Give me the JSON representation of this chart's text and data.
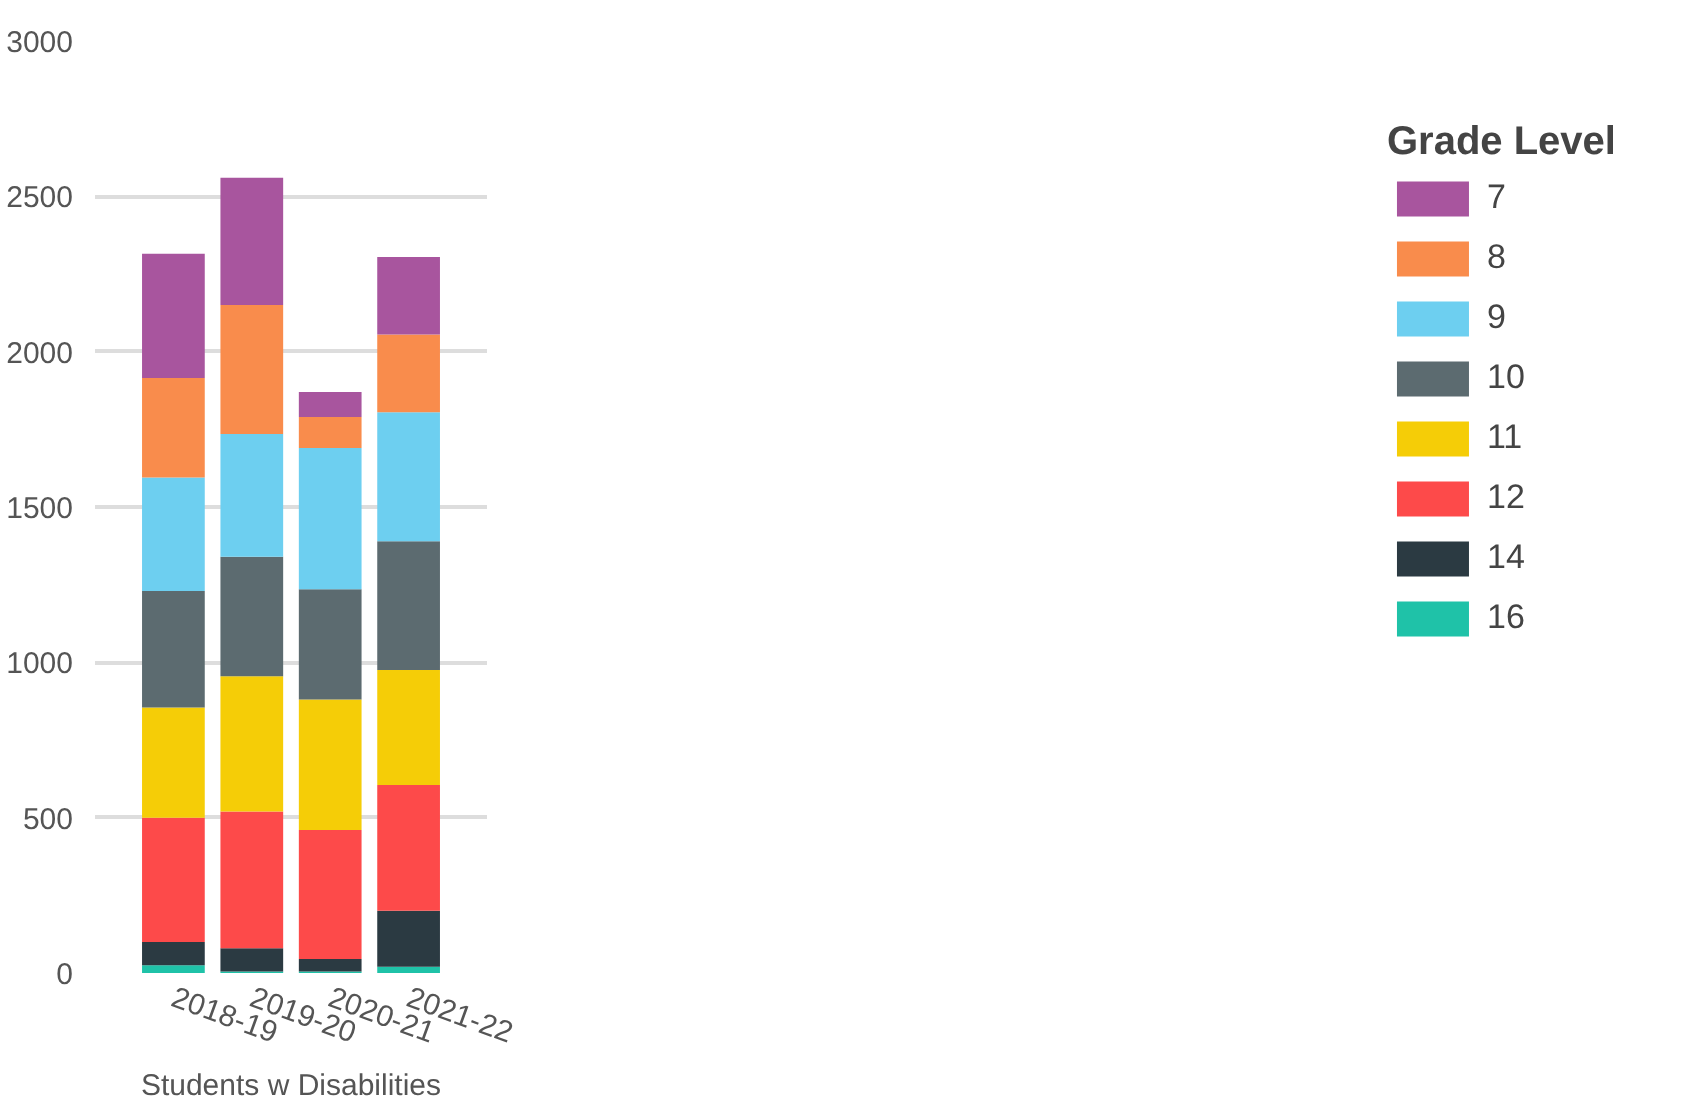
{
  "chart_data": {
    "type": "bar",
    "stacked": true,
    "categories": [
      "2018-19",
      "2019-20",
      "2020-21",
      "2021-22"
    ],
    "xlabel": "Students w Disabilities",
    "legend_title": "Grade Level",
    "legend": "right",
    "grid": "y",
    "ylim": [
      0,
      3000
    ],
    "yticks": [
      0,
      500,
      1000,
      1500,
      2000,
      2500,
      3000
    ],
    "series": [
      {
        "name": "16",
        "color": "#1fc2a8",
        "values": [
          25,
          5,
          5,
          20
        ]
      },
      {
        "name": "14",
        "color": "#2b3a42",
        "values": [
          75,
          75,
          40,
          180
        ]
      },
      {
        "name": "12",
        "color": "#fd4a4a",
        "values": [
          400,
          440,
          415,
          405
        ]
      },
      {
        "name": "11",
        "color": "#f5cd07",
        "values": [
          355,
          435,
          420,
          370
        ]
      },
      {
        "name": "10",
        "color": "#5c6b70",
        "values": [
          375,
          385,
          355,
          415
        ]
      },
      {
        "name": "9",
        "color": "#6dcff0",
        "values": [
          365,
          395,
          455,
          415
        ]
      },
      {
        "name": "8",
        "color": "#f98c4c",
        "values": [
          320,
          415,
          100,
          250
        ]
      },
      {
        "name": "7",
        "color": "#a8559e",
        "values": [
          400,
          410,
          80,
          250
        ]
      }
    ]
  }
}
